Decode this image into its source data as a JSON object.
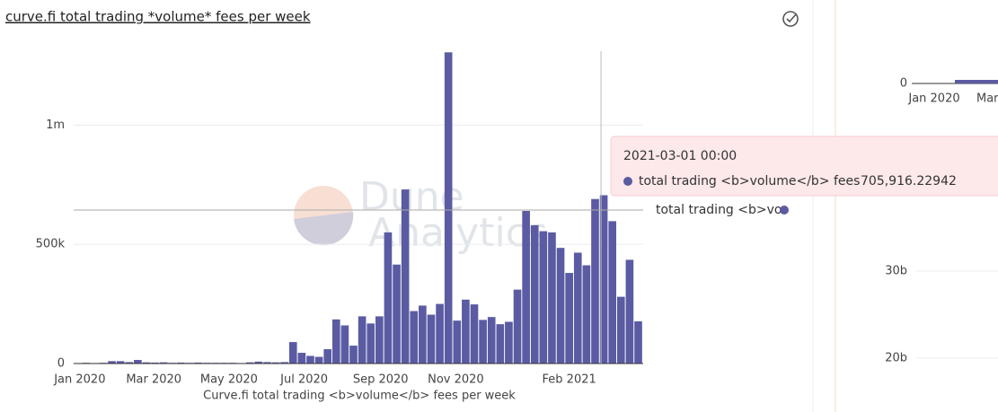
{
  "title": "curve.fi total trading *volume* fees per week",
  "watermark": [
    "Dune",
    "Analytics"
  ],
  "chart_data": {
    "type": "bar",
    "x_label": "Curve.fi total trading <b>volume</b> fees per week",
    "x": [
      "2019-12-30",
      "2020-01-06",
      "2020-01-13",
      "2020-01-20",
      "2020-01-27",
      "2020-02-03",
      "2020-02-10",
      "2020-02-17",
      "2020-02-24",
      "2020-03-02",
      "2020-03-09",
      "2020-03-16",
      "2020-03-23",
      "2020-03-30",
      "2020-04-06",
      "2020-04-13",
      "2020-04-20",
      "2020-04-27",
      "2020-05-04",
      "2020-05-11",
      "2020-05-18",
      "2020-05-25",
      "2020-06-01",
      "2020-06-08",
      "2020-06-15",
      "2020-06-22",
      "2020-06-29",
      "2020-07-06",
      "2020-07-13",
      "2020-07-20",
      "2020-07-27",
      "2020-08-03",
      "2020-08-10",
      "2020-08-17",
      "2020-08-24",
      "2020-08-31",
      "2020-09-07",
      "2020-09-14",
      "2020-09-21",
      "2020-09-28",
      "2020-10-05",
      "2020-10-12",
      "2020-10-19",
      "2020-10-26",
      "2020-11-02",
      "2020-11-09",
      "2020-11-16",
      "2020-11-23",
      "2020-11-30",
      "2020-12-07",
      "2020-12-14",
      "2020-12-21",
      "2020-12-28",
      "2021-01-04",
      "2021-01-11",
      "2021-01-18",
      "2021-01-25",
      "2021-02-01",
      "2021-02-08",
      "2021-02-15",
      "2021-02-22",
      "2021-03-01",
      "2021-03-08",
      "2021-03-15",
      "2021-03-22",
      "2021-03-29"
    ],
    "series": [
      {
        "name": "total trading <b>volume</b> fees",
        "color": "#5b5ba3",
        "values": [
          2000,
          3000,
          2000,
          3000,
          10000,
          10000,
          6000,
          15000,
          5000,
          4000,
          5000,
          3000,
          4000,
          3000,
          4000,
          3000,
          3000,
          3000,
          3000,
          2000,
          5000,
          8000,
          6000,
          5000,
          6000,
          90000,
          45000,
          32000,
          28000,
          60000,
          185000,
          160000,
          75000,
          198000,
          168000,
          198000,
          550000,
          415000,
          730000,
          220000,
          243000,
          205000,
          250000,
          1305000,
          180000,
          268000,
          248000,
          183000,
          195000,
          165000,
          175000,
          310000,
          640000,
          580000,
          555000,
          550000,
          485000,
          380000,
          465000,
          412000,
          690000,
          705916.22942,
          597000,
          280000,
          435000,
          177000
        ]
      }
    ],
    "xlim": [
      "2019-12-27",
      "2021-04-02"
    ],
    "xticks": [
      {
        "value": "2020-01-01",
        "label": "Jan 2020"
      },
      {
        "value": "2020-03-01",
        "label": "Mar 2020"
      },
      {
        "value": "2020-05-01",
        "label": "May 2020"
      },
      {
        "value": "2020-07-01",
        "label": "Jul 2020"
      },
      {
        "value": "2020-09-01",
        "label": "Sep 2020"
      },
      {
        "value": "2020-11-01",
        "label": "Nov 2020"
      },
      {
        "value": "2021-02-01",
        "label": "Feb 2021"
      }
    ],
    "ylim": [
      0,
      1310000
    ],
    "yticks": [
      0,
      {
        "value": 500000,
        "label": "500k"
      },
      {
        "value": 1000000,
        "label": "1m"
      }
    ],
    "grid": true
  },
  "tooltip": {
    "date": "2021-03-01 00:00",
    "series": "total trading <b>volume</b> fees",
    "value": "705,916.22942",
    "hover_label": "total trading <b>vo"
  },
  "side_panel": {
    "y_labels": [
      "0",
      "30b",
      "20b"
    ],
    "x_labels": [
      "Jan 2020",
      "Mar"
    ]
  }
}
